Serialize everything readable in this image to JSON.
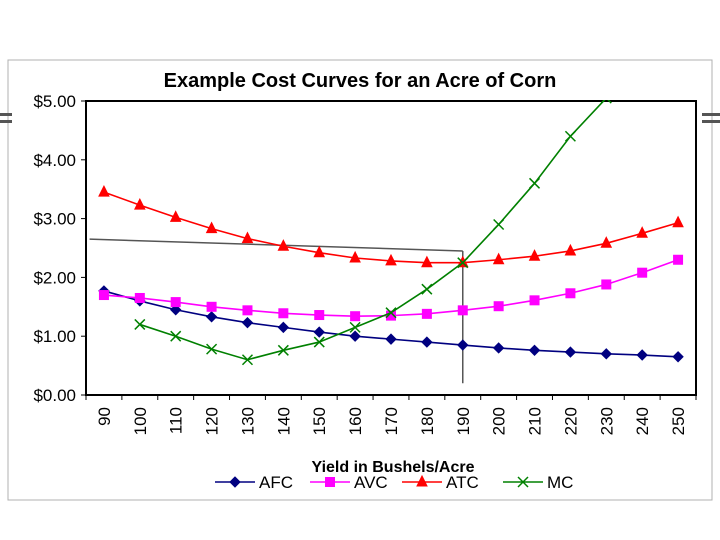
{
  "chart_data": {
    "type": "line",
    "title": "Example Cost Curves for an Acre of Corn",
    "xlabel": "Yield in Bushels/Acre",
    "ylabel": "",
    "ylim": [
      0,
      5
    ],
    "y_ticks": [
      "$0.00",
      "$1.00",
      "$2.00",
      "$3.00",
      "$4.00",
      "$5.00"
    ],
    "categories": [
      "90",
      "100",
      "110",
      "120",
      "130",
      "140",
      "150",
      "160",
      "170",
      "180",
      "190",
      "200",
      "210",
      "220",
      "230",
      "240",
      "250"
    ],
    "series": [
      {
        "name": "AFC",
        "color": "#000080",
        "marker": "diamond",
        "values": [
          1.77,
          1.6,
          1.45,
          1.33,
          1.23,
          1.15,
          1.07,
          1.0,
          0.95,
          0.9,
          0.85,
          0.8,
          0.76,
          0.73,
          0.7,
          0.68,
          0.65
        ]
      },
      {
        "name": "AVC",
        "color": "#FF00FF",
        "marker": "square",
        "values": [
          1.7,
          1.65,
          1.58,
          1.5,
          1.44,
          1.39,
          1.36,
          1.34,
          1.35,
          1.38,
          1.44,
          1.51,
          1.61,
          1.73,
          1.88,
          2.08,
          2.3
        ]
      },
      {
        "name": "ATC",
        "color": "#FF0000",
        "marker": "triangle",
        "values": [
          3.45,
          3.23,
          3.02,
          2.83,
          2.66,
          2.53,
          2.42,
          2.33,
          2.28,
          2.25,
          2.25,
          2.3,
          2.36,
          2.45,
          2.58,
          2.75,
          2.93
        ]
      },
      {
        "name": "MC",
        "color": "#008000",
        "marker": "x",
        "values": [
          null,
          1.2,
          1.0,
          0.78,
          0.6,
          0.76,
          0.9,
          1.15,
          1.4,
          1.8,
          2.25,
          2.9,
          3.6,
          4.4,
          5.05,
          null,
          null
        ]
      }
    ],
    "annotations": [
      {
        "type": "line",
        "from": {
          "x": 86,
          "y": 2.65
        },
        "to": {
          "x": 190,
          "y": 2.45
        }
      },
      {
        "type": "line",
        "from": {
          "x": 190,
          "y": 2.45
        },
        "to": {
          "x": 190,
          "y": 0.2
        }
      }
    ]
  }
}
